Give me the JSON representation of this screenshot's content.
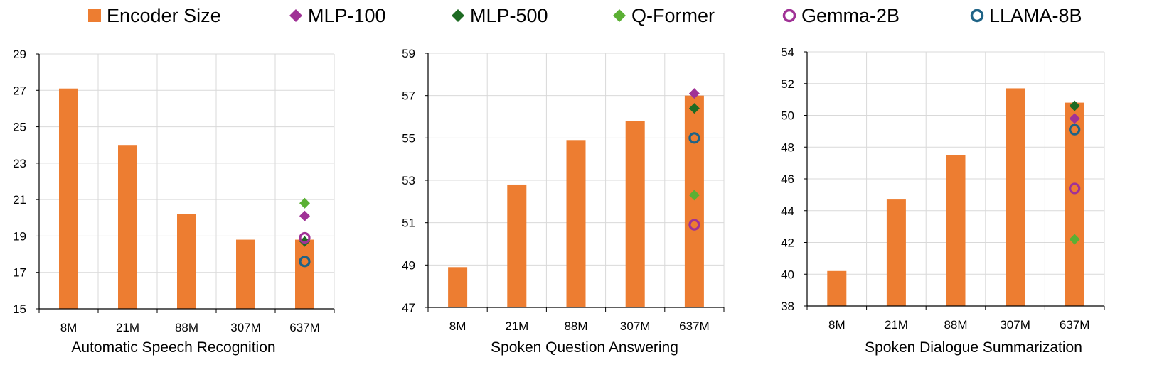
{
  "legend": [
    {
      "label": "Encoder Size",
      "marker": "square",
      "color": "#ED7D31"
    },
    {
      "label": "MLP-100",
      "marker": "diamond",
      "color": "#A03296"
    },
    {
      "label": "MLP-500",
      "marker": "diamond",
      "color": "#1E6B23"
    },
    {
      "label": "Q-Former",
      "marker": "diamond",
      "color": "#5BB034"
    },
    {
      "label": "Gemma-2B",
      "marker": "circle",
      "color": "#A03296"
    },
    {
      "label": "LLAMA-8B",
      "marker": "circle",
      "color": "#1F6386"
    }
  ],
  "chart_data": [
    {
      "type": "bar",
      "xlabel": "Automatic Speech Recognition",
      "categories": [
        "8M",
        "21M",
        "88M",
        "307M",
        "637M"
      ],
      "ylim": [
        15,
        29
      ],
      "yticks": [
        15,
        17,
        19,
        21,
        23,
        25,
        27,
        29
      ],
      "grid": true,
      "series": [
        {
          "name": "Encoder Size",
          "values": [
            27.1,
            24.0,
            20.2,
            18.8,
            18.8
          ]
        }
      ],
      "markers_at": "637M",
      "markers": [
        {
          "name": "MLP-100",
          "value": 20.1
        },
        {
          "name": "MLP-500",
          "value": 18.7
        },
        {
          "name": "Q-Former",
          "value": 20.8
        },
        {
          "name": "Gemma-2B",
          "value": 18.9
        },
        {
          "name": "LLAMA-8B",
          "value": 17.6
        }
      ]
    },
    {
      "type": "bar",
      "xlabel": "Spoken Question Answering",
      "categories": [
        "8M",
        "21M",
        "88M",
        "307M",
        "637M"
      ],
      "ylim": [
        47,
        59
      ],
      "yticks": [
        47,
        49,
        51,
        53,
        55,
        57,
        59
      ],
      "grid": true,
      "series": [
        {
          "name": "Encoder Size",
          "values": [
            48.9,
            52.8,
            54.9,
            55.8,
            57.0
          ]
        }
      ],
      "markers_at": "637M",
      "markers": [
        {
          "name": "MLP-100",
          "value": 57.1
        },
        {
          "name": "MLP-500",
          "value": 56.4
        },
        {
          "name": "Q-Former",
          "value": 52.3
        },
        {
          "name": "Gemma-2B",
          "value": 50.9
        },
        {
          "name": "LLAMA-8B",
          "value": 55.0
        }
      ]
    },
    {
      "type": "bar",
      "xlabel": "Spoken Dialogue Summarization",
      "categories": [
        "8M",
        "21M",
        "88M",
        "307M",
        "637M"
      ],
      "ylim": [
        38,
        54
      ],
      "yticks": [
        38,
        40,
        42,
        44,
        46,
        48,
        50,
        52,
        54
      ],
      "grid": true,
      "series": [
        {
          "name": "Encoder Size",
          "values": [
            40.2,
            44.7,
            47.5,
            51.7,
            50.8
          ]
        }
      ],
      "markers_at": "637M",
      "markers": [
        {
          "name": "MLP-100",
          "value": 49.8
        },
        {
          "name": "MLP-500",
          "value": 50.6
        },
        {
          "name": "Q-Former",
          "value": 42.2
        },
        {
          "name": "Gemma-2B",
          "value": 45.4
        },
        {
          "name": "LLAMA-8B",
          "value": 49.1
        }
      ]
    }
  ]
}
